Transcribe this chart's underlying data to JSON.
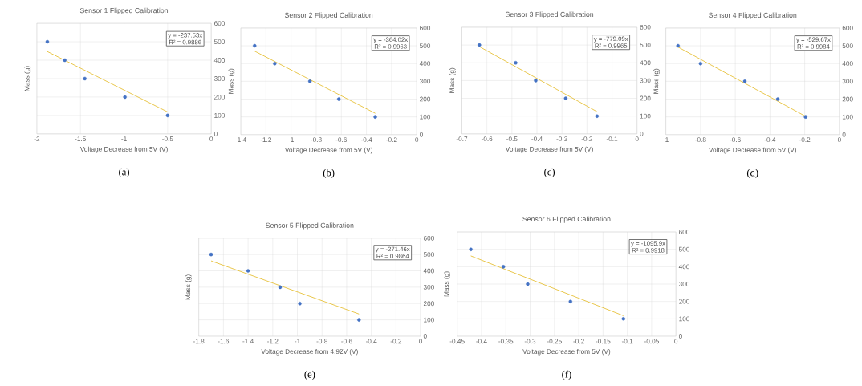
{
  "chart_data": [
    {
      "type": "scatter",
      "title": "Sensor 1 Flipped Calibration",
      "xlabel": "Voltage Decrease from 5V (V)",
      "ylabel": "Mass (g)",
      "xlim": [
        -2,
        0
      ],
      "xticks": [
        -2,
        -1.5,
        -1,
        -0.5,
        0
      ],
      "ylim": [
        0,
        600
      ],
      "yticks": [
        0,
        100,
        200,
        300,
        400,
        500,
        600
      ],
      "grid": true,
      "annotations": [
        "y = -237.53x",
        "R² = 0.9886",
        "(a)"
      ],
      "series": [
        {
          "type": "scatter",
          "marker": "circle",
          "color": "#4472c4",
          "x": [
            -1.88,
            -1.68,
            -1.45,
            -0.99,
            -0.5
          ],
          "values": [
            500,
            400,
            300,
            200,
            100
          ]
        },
        {
          "type": "line",
          "marker": "none",
          "color": "#e8c547",
          "x": [
            -1.88,
            -0.5
          ],
          "values": [
            447,
            119
          ]
        }
      ]
    },
    {
      "type": "scatter",
      "title": "Sensor 2 Flipped Calibration",
      "xlabel": "Voltage Decrease from 5V (V)",
      "ylabel": "Mass (g)",
      "xlim": [
        -1.4,
        0
      ],
      "xticks": [
        -1.4,
        -1.2,
        -1,
        -0.8,
        -0.6,
        -0.4,
        -0.2,
        0
      ],
      "ylim": [
        0,
        600
      ],
      "yticks": [
        0,
        100,
        200,
        300,
        400,
        500,
        600
      ],
      "grid": true,
      "annotations": [
        "y = -364.02x",
        "R² = 0.9963",
        "(b)"
      ],
      "series": [
        {
          "type": "scatter",
          "marker": "circle",
          "color": "#4472c4",
          "x": [
            -1.29,
            -1.13,
            -0.85,
            -0.62,
            -0.33
          ],
          "values": [
            500,
            400,
            300,
            200,
            100
          ]
        },
        {
          "type": "line",
          "marker": "none",
          "color": "#e8c547",
          "x": [
            -1.29,
            -0.33
          ],
          "values": [
            470,
            120
          ]
        }
      ]
    },
    {
      "type": "scatter",
      "title": "Sensor 3 Flipped Calibration",
      "xlabel": "Voltage Decrease from 5V (V)",
      "ylabel": "Mass (g)",
      "xlim": [
        -0.7,
        0
      ],
      "xticks": [
        -0.7,
        -0.6,
        -0.5,
        -0.4,
        -0.3,
        -0.2,
        -0.1,
        0
      ],
      "ylim": [
        0,
        600
      ],
      "yticks": [
        0,
        100,
        200,
        300,
        400,
        500,
        600
      ],
      "grid": true,
      "annotations": [
        "y = -779.09x",
        "R² = 0.9965",
        "(c)"
      ],
      "series": [
        {
          "type": "scatter",
          "marker": "circle",
          "color": "#4472c4",
          "x": [
            -0.63,
            -0.485,
            -0.405,
            -0.285,
            -0.16
          ],
          "values": [
            500,
            400,
            300,
            200,
            100
          ]
        },
        {
          "type": "line",
          "marker": "none",
          "color": "#e8c547",
          "x": [
            -0.63,
            -0.16
          ],
          "values": [
            491,
            125
          ]
        }
      ]
    },
    {
      "type": "scatter",
      "title": "Sensor 4 Flipped Calibration",
      "xlabel": "Voltage Decrease from 5V (V)",
      "ylabel": "Mass (g)",
      "xlim": [
        -1,
        0
      ],
      "xticks": [
        -1,
        -0.8,
        -0.6,
        -0.4,
        -0.2,
        0
      ],
      "ylim": [
        0,
        600
      ],
      "yticks": [
        0,
        100,
        200,
        300,
        400,
        500,
        600
      ],
      "grid": true,
      "annotations": [
        "y = -529.67x",
        "R² = 0.9984",
        "(d)"
      ],
      "series": [
        {
          "type": "scatter",
          "marker": "circle",
          "color": "#4472c4",
          "x": [
            -0.93,
            -0.8,
            -0.545,
            -0.355,
            -0.195
          ],
          "values": [
            500,
            400,
            300,
            200,
            100
          ]
        },
        {
          "type": "line",
          "marker": "none",
          "color": "#e8c547",
          "x": [
            -0.93,
            -0.195
          ],
          "values": [
            493,
            103
          ]
        }
      ]
    },
    {
      "type": "scatter",
      "title": "Sensor 5 Flipped Calibration",
      "xlabel": "Voltage Decrease from 4.92V (V)",
      "ylabel": "Mass (g)",
      "xlim": [
        -1.8,
        0
      ],
      "xticks": [
        -1.8,
        -1.6,
        -1.4,
        -1.2,
        -1,
        -0.8,
        -0.6,
        -0.4,
        -0.2,
        0
      ],
      "ylim": [
        0,
        600
      ],
      "yticks": [
        0,
        100,
        200,
        300,
        400,
        500,
        600
      ],
      "grid": true,
      "annotations": [
        "y = -271.46x",
        "R² = 0.9864",
        "(e)"
      ],
      "series": [
        {
          "type": "scatter",
          "marker": "circle",
          "color": "#4472c4",
          "x": [
            -1.7,
            -1.4,
            -1.14,
            -0.98,
            -0.5
          ],
          "values": [
            500,
            400,
            300,
            200,
            100
          ]
        },
        {
          "type": "line",
          "marker": "none",
          "color": "#e8c547",
          "x": [
            -1.7,
            -0.5
          ],
          "values": [
            461,
            136
          ]
        }
      ]
    },
    {
      "type": "scatter",
      "title": "Sensor 6 Flipped Calibration",
      "xlabel": "Voltage Decrease from 5V (V)",
      "ylabel": "Mass (g)",
      "xlim": [
        -0.45,
        0
      ],
      "xticks": [
        -0.45,
        -0.4,
        -0.35,
        -0.3,
        -0.25,
        -0.2,
        -0.15,
        -0.1,
        -0.05,
        0
      ],
      "ylim": [
        0,
        600
      ],
      "yticks": [
        0,
        100,
        200,
        300,
        400,
        500,
        600
      ],
      "grid": true,
      "annotations": [
        "y = -1095.9x",
        "R² = 0.9918",
        "(f)"
      ],
      "series": [
        {
          "type": "scatter",
          "marker": "circle",
          "color": "#4472c4",
          "x": [
            -0.422,
            -0.355,
            -0.305,
            -0.217,
            -0.108
          ],
          "values": [
            500,
            400,
            300,
            200,
            100
          ]
        },
        {
          "type": "line",
          "marker": "none",
          "color": "#e8c547",
          "x": [
            -0.422,
            -0.108
          ],
          "values": [
            462,
            118
          ]
        }
      ]
    }
  ]
}
